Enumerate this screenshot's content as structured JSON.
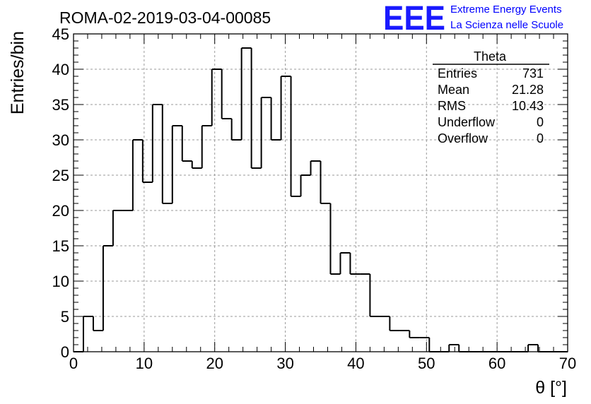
{
  "header": {
    "run_title": "ROMA-02-2019-03-04-00085",
    "logo": "EEE",
    "brand_line1": "Extreme Energy Events",
    "brand_line2": "La Scienza nelle Scuole",
    "brand_color": "#0000ff"
  },
  "stats": {
    "title": "Theta",
    "rows": [
      {
        "label": "Entries",
        "value": "731"
      },
      {
        "label": "Mean",
        "value": "21.28"
      },
      {
        "label": "RMS",
        "value": "10.43"
      },
      {
        "label": "Underflow",
        "value": "0"
      },
      {
        "label": "Overflow",
        "value": "0"
      }
    ]
  },
  "chart_data": {
    "type": "bar",
    "style": "step-histogram",
    "xlabel": "θ [°]",
    "ylabel": "Entries/bin",
    "xlim": [
      0,
      70
    ],
    "ylim": [
      0,
      45
    ],
    "grid": true,
    "bin_width": 1.4,
    "x_ticks": [
      0,
      10,
      20,
      30,
      40,
      50,
      60,
      70
    ],
    "y_ticks": [
      0,
      5,
      10,
      15,
      20,
      25,
      30,
      35,
      40,
      45
    ],
    "values": [
      0,
      5,
      3,
      15,
      20,
      20,
      30,
      24,
      35,
      21,
      32,
      27,
      26,
      32,
      40,
      33,
      30,
      43,
      26,
      36,
      30,
      39,
      22,
      25,
      27,
      21,
      11,
      14,
      11,
      11,
      5,
      5,
      3,
      3,
      2,
      2,
      0,
      0,
      1,
      0,
      0,
      0,
      0,
      0,
      0,
      0,
      1,
      0,
      0,
      0
    ]
  }
}
